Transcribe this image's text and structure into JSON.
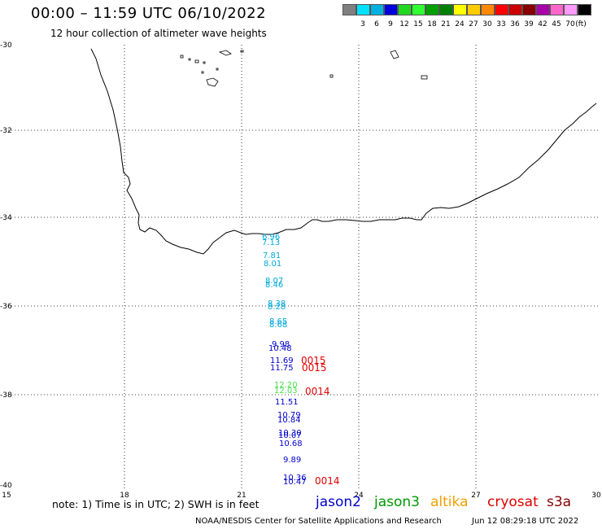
{
  "header": {
    "title": "00:00 – 11:59 UTC 06/10/2022",
    "subtitle": "12 hour collection of altimeter wave heights"
  },
  "colorbar": {
    "unit_label": "(ft)",
    "swatches": [
      {
        "color": "#808080",
        "label": ""
      },
      {
        "color": "#00e0ff",
        "label": "3"
      },
      {
        "color": "#00b0e0",
        "label": "6"
      },
      {
        "color": "#0000dd",
        "label": "9"
      },
      {
        "color": "#20d820",
        "label": "12"
      },
      {
        "color": "#30ff30",
        "label": "15"
      },
      {
        "color": "#00a000",
        "label": "18"
      },
      {
        "color": "#008000",
        "label": "21"
      },
      {
        "color": "#ffff00",
        "label": "24"
      },
      {
        "color": "#ffcc00",
        "label": "27"
      },
      {
        "color": "#ff8800",
        "label": "30"
      },
      {
        "color": "#ff0000",
        "label": "33"
      },
      {
        "color": "#cc0000",
        "label": "36"
      },
      {
        "color": "#880000",
        "label": "39"
      },
      {
        "color": "#aa00aa",
        "label": "42"
      },
      {
        "color": "#ff66cc",
        "label": "45"
      },
      {
        "color": "#ff99ff",
        "label": "70"
      },
      {
        "color": "#000000",
        "label": ""
      }
    ]
  },
  "axes": {
    "lat_labels": [
      "-30",
      "-32",
      "-34",
      "-36",
      "-38",
      "-40"
    ],
    "lon_labels": [
      "15",
      "18",
      "21",
      "24",
      "27",
      "30"
    ]
  },
  "observations": [
    {
      "text": "6.96",
      "color": "#00aadd"
    },
    {
      "text": "7.13",
      "color": "#00aadd"
    },
    {
      "text": "7.81",
      "color": "#00aadd"
    },
    {
      "text": "8.01",
      "color": "#00aadd"
    },
    {
      "text": "8.07",
      "color": "#00aadd"
    },
    {
      "text": "8.46",
      "color": "#00aadd"
    },
    {
      "text": "8.38",
      "color": "#00aadd"
    },
    {
      "text": "8.28",
      "color": "#00aadd"
    },
    {
      "text": "8.65",
      "color": "#00aadd"
    },
    {
      "text": "8.68",
      "color": "#00aadd"
    },
    {
      "text": "9.98",
      "color": "#0000cc"
    },
    {
      "text": "10.48",
      "color": "#0000cc"
    },
    {
      "text": "11.69",
      "color": "#0000cc"
    },
    {
      "text": "11.75",
      "color": "#0000cc"
    },
    {
      "text": "12.20",
      "color": "#44dd44"
    },
    {
      "text": "12.03",
      "color": "#44dd44"
    },
    {
      "text": "11.51",
      "color": "#0000cc"
    },
    {
      "text": "10.79",
      "color": "#0000cc"
    },
    {
      "text": "10.84",
      "color": "#0000cc"
    },
    {
      "text": "10.30",
      "color": "#0000cc"
    },
    {
      "text": "10.07",
      "color": "#0000cc"
    },
    {
      "text": "10.68",
      "color": "#0000cc"
    },
    {
      "text": "9.89",
      "color": "#0000cc"
    },
    {
      "text": "10.36",
      "color": "#0000cc"
    },
    {
      "text": "10.47",
      "color": "#0000cc"
    }
  ],
  "orbit_labels": [
    "0015",
    "0015",
    "0014",
    "0014"
  ],
  "note": "note: 1) Time is in UTC; 2) SWH is in feet",
  "legend": {
    "jason2": "jason2",
    "jason3": "jason3",
    "altika": "altika",
    "cryosat": "cryosat",
    "s3a": "s3a"
  },
  "footer": {
    "agency": "NOAA/NESDIS Center for Satellite Applications and Research",
    "timestamp": "Jun 12 08:29:18 UTC 2022"
  }
}
